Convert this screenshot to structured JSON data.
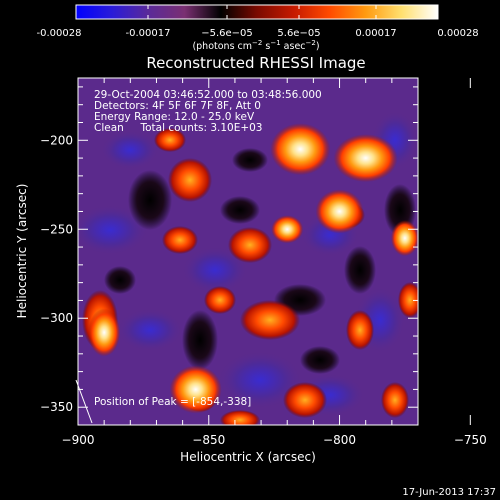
{
  "colorbar": {
    "tick_labels": [
      "-0.00028",
      "-0.00017",
      "−5.6e−05",
      "5.6e−05",
      "0.00017",
      "0.00028"
    ],
    "unit_main": "(photons cm",
    "unit_exp1": "−2",
    "unit_mid": " s",
    "unit_exp2": "−1",
    "unit_mid2": " asec",
    "unit_exp3": "−2",
    "unit_end": ")",
    "stops": [
      "#0000ff",
      "#2a1bd8",
      "#5a2a99",
      "#7a2f72",
      "#000000",
      "#7a0a00",
      "#c51a00",
      "#ff4a00",
      "#ff9a10",
      "#ffe070",
      "#ffffff"
    ]
  },
  "chart_data": {
    "type": "heatmap",
    "title": "Reconstructed RHESSI Image",
    "xlabel": "Heliocentric X (arcsec)",
    "ylabel": "Heliocentric Y (arcsec)",
    "xlim": [
      -900,
      -770
    ],
    "ylim": [
      -360,
      -165
    ],
    "xticks": [
      -900,
      -850,
      -800,
      -750
    ],
    "xtick_labels": [
      "−900",
      "−850",
      "−800",
      "−750"
    ],
    "yticks": [
      -350,
      -300,
      -250,
      -200
    ],
    "ytick_labels": [
      "−350",
      "−300",
      "−250",
      "−200"
    ],
    "bright_sources": [
      {
        "x": -815,
        "y": -205
      },
      {
        "x": -790,
        "y": -210
      },
      {
        "x": -800,
        "y": -240
      },
      {
        "x": -855,
        "y": -340
      },
      {
        "x": -890,
        "y": -308
      },
      {
        "x": -775,
        "y": -255
      },
      {
        "x": -820,
        "y": -250
      }
    ],
    "peak": {
      "x": -854,
      "y": -338
    }
  },
  "annotations": [
    "29-Oct-2004 03:46:52.000 to 03:48:56.000",
    "Detectors: 4F 5F 6F 7F 8F, Att 0",
    "Energy Range: 12.0 - 25.0 keV",
    "Clean     Total counts: 3.10E+03"
  ],
  "peak_label": "Position of Peak = [-854,-338]",
  "footer_date": "17-Jun-2013 17:37"
}
